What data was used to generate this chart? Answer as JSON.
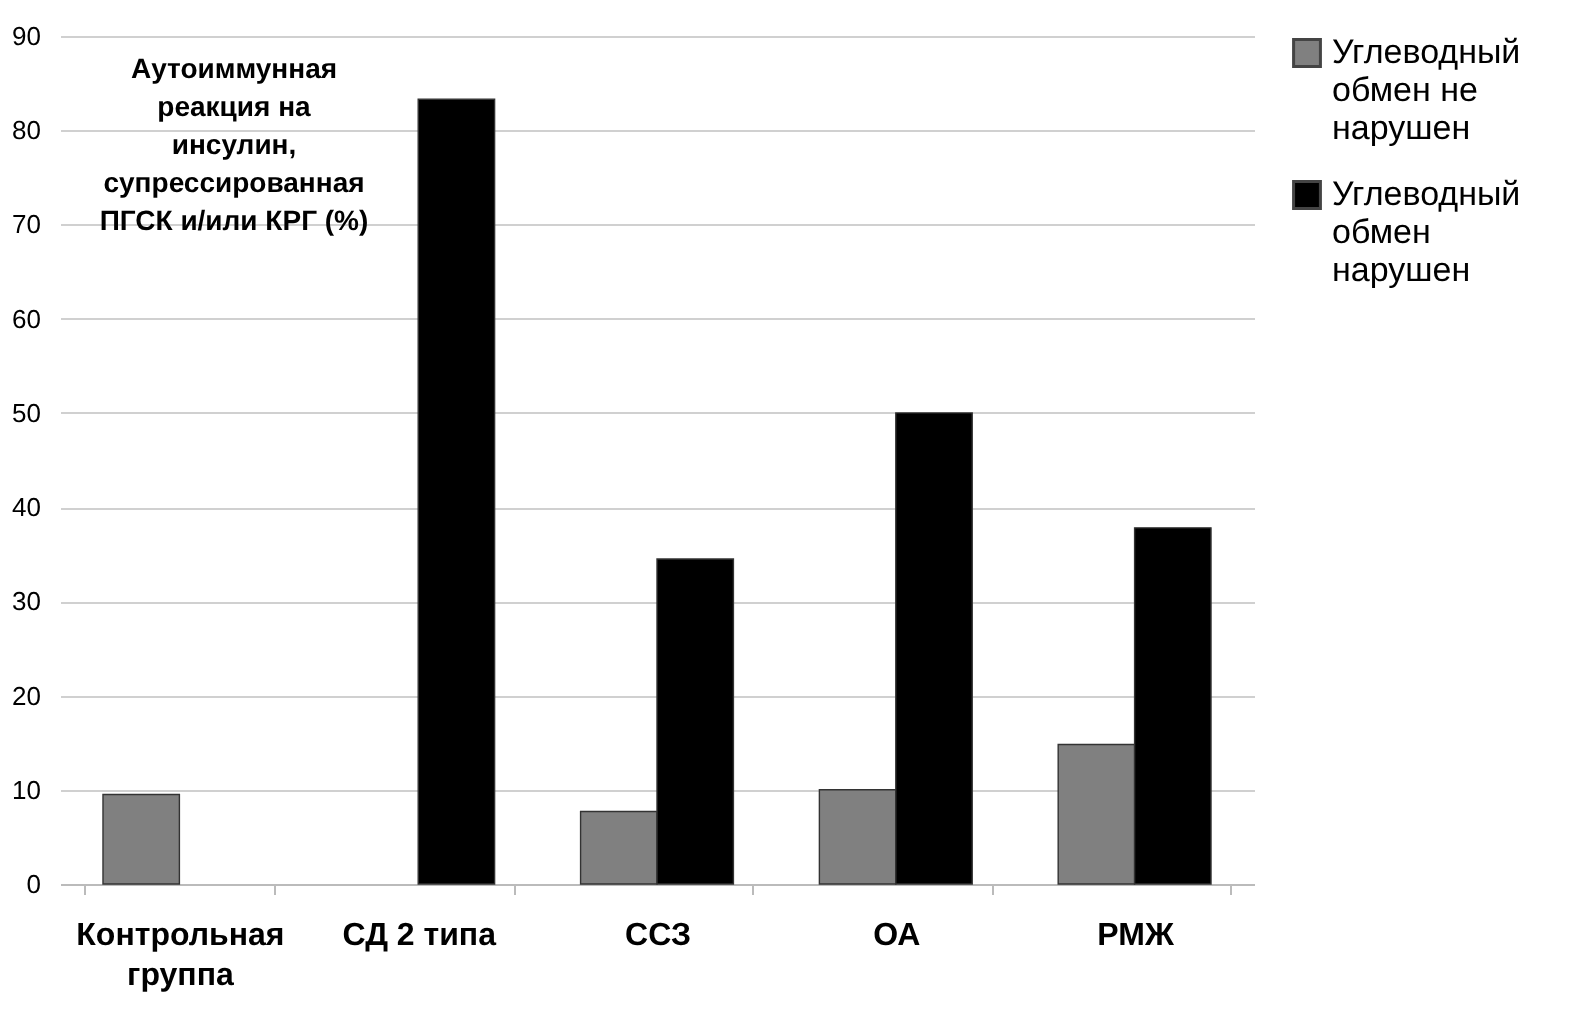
{
  "chart_data": {
    "type": "bar",
    "title": "Аутоиммунная реакция на инсулин, супрессированная ПГСК и/или КРГ (%)",
    "categories": [
      "Контрольная группа",
      "СД 2 типа",
      "ССЗ",
      "ОА",
      "РМЖ"
    ],
    "series": [
      {
        "name": "Углеводный обмен не нарушен",
        "color": "#808080",
        "values": [
          9.5,
          null,
          7.7,
          10,
          14.8
        ]
      },
      {
        "name": "Углеводный обмен нарушен",
        "color": "#000000",
        "values": [
          null,
          83.3,
          34.5,
          50,
          37.8
        ]
      }
    ],
    "ylim": [
      0,
      90
    ],
    "yticks": [
      0,
      10,
      20,
      30,
      40,
      50,
      60,
      70,
      80,
      90
    ],
    "grid": "y",
    "legend": "right"
  }
}
